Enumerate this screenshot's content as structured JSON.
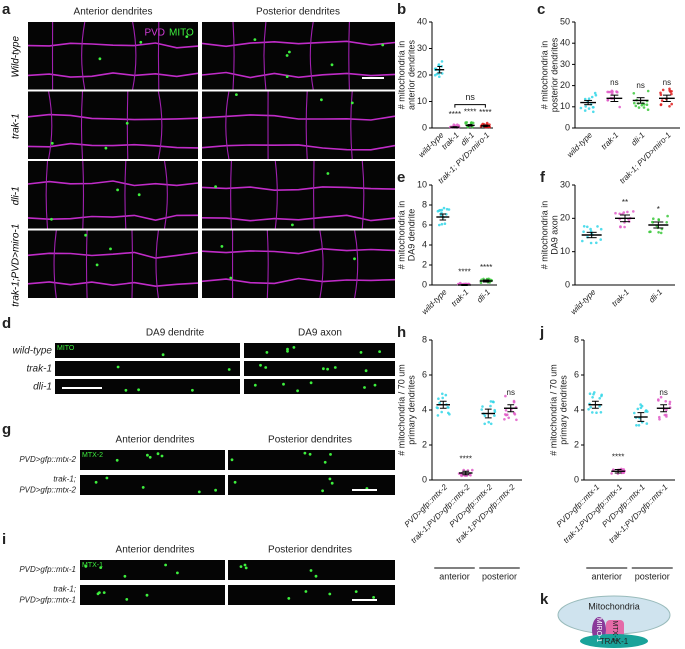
{
  "panel_labels": [
    "a",
    "b",
    "c",
    "d",
    "e",
    "f",
    "g",
    "h",
    "i",
    "j",
    "k"
  ],
  "micrographs": {
    "a": {
      "columns": [
        "Anterior dendrites",
        "Posterior dendrites"
      ],
      "rows": [
        "Wild-type",
        "trak-1",
        "dli-1",
        "trak-1;PVD>miro-1"
      ],
      "channels": [
        "PVD",
        "MITO"
      ]
    },
    "d": {
      "columns": [
        "DA9 dendrite",
        "DA9 axon"
      ],
      "rows": [
        "wild-type",
        "trak-1",
        "dli-1"
      ],
      "channel": "MITO"
    },
    "g": {
      "columns": [
        "Anterior dendrites",
        "Posterior dendrites"
      ],
      "rows": [
        [
          "PVD>gfp::mtx-2"
        ],
        [
          "trak-1;",
          "PVD>gfp::mtx-2"
        ]
      ],
      "channel": "MTX-2"
    },
    "i": {
      "columns": [
        "Anterior dendrites",
        "Posterior dendrites"
      ],
      "rows": [
        [
          "PVD>gfp::mtx-1"
        ],
        [
          "trak-1;",
          "PVD>gfp::mtx-1"
        ]
      ],
      "channel": "MTX-1"
    }
  },
  "chart_data": [
    {
      "type": "dot",
      "panel": "b",
      "ylabel": [
        "# mitochondria in",
        "anterior dendrites"
      ],
      "categories": [
        "wild-type",
        "trak-1",
        "dli-1",
        "trak-1; PVD>miro-1"
      ],
      "values": [
        22,
        0.3,
        1,
        0.8
      ],
      "errors": [
        1.2,
        0.2,
        0.3,
        0.3
      ],
      "colors": [
        "#33d6e8",
        "#e05cc8",
        "#3cc83c",
        "#e01e1e"
      ],
      "sig": [
        null,
        "****",
        "****",
        "****"
      ],
      "bracket_label": "ns",
      "ylim": [
        0,
        40
      ],
      "yticks": [
        0,
        10,
        20,
        30,
        40
      ]
    },
    {
      "type": "dot",
      "panel": "c",
      "ylabel": [
        "# mitochondria in",
        "posterior dendrites"
      ],
      "categories": [
        "wild-type",
        "trak-1",
        "dli-1",
        "trak-1; PVD>miro-1"
      ],
      "values": [
        12,
        14,
        13,
        14
      ],
      "errors": [
        1,
        1.5,
        1.3,
        1.5
      ],
      "colors": [
        "#33d6e8",
        "#e05cc8",
        "#3cc83c",
        "#e01e1e"
      ],
      "sig": [
        null,
        "ns",
        "ns",
        "ns"
      ],
      "ylim": [
        0,
        50
      ],
      "yticks": [
        0,
        10,
        20,
        30,
        40,
        50
      ]
    },
    {
      "type": "dot",
      "panel": "e",
      "ylabel": [
        "# mitochondria in",
        "DA9 dendrite"
      ],
      "categories": [
        "wild-type",
        "trak-1",
        "dli-1"
      ],
      "values": [
        6.8,
        0,
        0.4
      ],
      "errors": [
        0.3,
        0.05,
        0.1
      ],
      "colors": [
        "#33d6e8",
        "#e05cc8",
        "#3cc83c"
      ],
      "sig": [
        null,
        "****",
        "****"
      ],
      "ylim": [
        0,
        10
      ],
      "yticks": [
        0,
        2,
        4,
        6,
        8,
        10
      ]
    },
    {
      "type": "dot",
      "panel": "f",
      "ylabel": [
        "# mitochondria in",
        "DA9 axon"
      ],
      "categories": [
        "wild-type",
        "trak-1",
        "dli-1"
      ],
      "values": [
        15,
        20,
        18
      ],
      "errors": [
        0.8,
        1,
        0.9
      ],
      "colors": [
        "#33d6e8",
        "#e05cc8",
        "#3cc83c"
      ],
      "sig": [
        null,
        "**",
        "*"
      ],
      "ylim": [
        0,
        30
      ],
      "yticks": [
        0,
        10,
        20,
        30
      ]
    },
    {
      "type": "dot",
      "panel": "h",
      "ylabel": [
        "# mitochondria / 70 um",
        "primary dendrites"
      ],
      "categories": [
        "PVD>gfp::mtx-2",
        "trak-1;PVD>gfp::mtx-2",
        "PVD>gfp::mtx-2",
        "trak-1;PVD>gfp::mtx-2"
      ],
      "values": [
        4.3,
        0.4,
        3.8,
        4.1
      ],
      "errors": [
        0.2,
        0.1,
        0.25,
        0.2
      ],
      "colors": [
        "#33d6e8",
        "#e05cc8",
        "#33d6e8",
        "#e05cc8"
      ],
      "sig": [
        null,
        "****",
        null,
        "ns"
      ],
      "groups": [
        "anterior",
        "posterior"
      ],
      "ylim": [
        0,
        8
      ],
      "yticks": [
        0,
        2,
        4,
        6,
        8
      ]
    },
    {
      "type": "dot",
      "panel": "j",
      "ylabel": [
        "# mitochondria / 70 um",
        "primary dendrites"
      ],
      "categories": [
        "PVD>gfp::mtx-1",
        "trak-1;PVD>gfp::mtx-1",
        "PVD>gfp::mtx-1",
        "trak-1;PVD>gfp::mtx-1"
      ],
      "values": [
        4.3,
        0.5,
        3.6,
        4.1
      ],
      "errors": [
        0.2,
        0.1,
        0.25,
        0.2
      ],
      "colors": [
        "#33d6e8",
        "#e05cc8",
        "#33d6e8",
        "#e05cc8"
      ],
      "sig": [
        null,
        "****",
        null,
        "ns"
      ],
      "groups": [
        "anterior",
        "posterior"
      ],
      "ylim": [
        0,
        8
      ],
      "yticks": [
        0,
        2,
        4,
        6,
        8
      ]
    }
  ],
  "diagram": {
    "nodes": [
      "Mitochondria",
      "MIRO-1",
      "MTX-2",
      "TRAK-1"
    ]
  }
}
